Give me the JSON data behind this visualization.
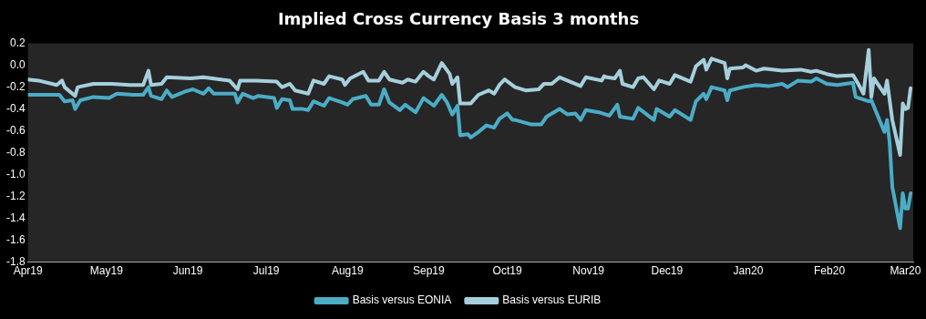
{
  "chart_data": {
    "type": "line",
    "title": "Implied Cross Currency Basis 3 months",
    "xlim": [
      "2019-04-01",
      "2020-03-04"
    ],
    "xticks": [
      {
        "value": "2019-04-01",
        "label": "Apr19"
      },
      {
        "value": "2019-05-01",
        "label": "May19"
      },
      {
        "value": "2019-06-01",
        "label": "Jun19"
      },
      {
        "value": "2019-07-01",
        "label": "Jul19"
      },
      {
        "value": "2019-08-01",
        "label": "Aug19"
      },
      {
        "value": "2019-09-01",
        "label": "Sep19"
      },
      {
        "value": "2019-10-01",
        "label": "Oct19"
      },
      {
        "value": "2019-11-01",
        "label": "Nov19"
      },
      {
        "value": "2019-12-01",
        "label": "Dec19"
      },
      {
        "value": "2020-01-01",
        "label": "Jan20"
      },
      {
        "value": "2020-02-01",
        "label": "Feb20"
      },
      {
        "value": "2020-03-01",
        "label": "Mar20"
      }
    ],
    "ylim": [
      -1.8,
      0.2
    ],
    "yticks": [
      {
        "value": -1.8,
        "label": "-1.8"
      },
      {
        "value": -1.6,
        "label": "-1.6"
      },
      {
        "value": -1.4,
        "label": "-1.4"
      },
      {
        "value": -1.2,
        "label": "-1.2"
      },
      {
        "value": -1.0,
        "label": "-1.0"
      },
      {
        "value": -0.8,
        "label": "-0.8"
      },
      {
        "value": -0.6,
        "label": "-0.6"
      },
      {
        "value": -0.4,
        "label": "-0.4"
      },
      {
        "value": -0.2,
        "label": "-0.2"
      },
      {
        "value": 0,
        "label": "0.0"
      },
      {
        "value": 0.2,
        "label": "0.2"
      }
    ],
    "grid": false,
    "legend": "bottom",
    "marker": "none",
    "line_style": "solid",
    "series": [
      {
        "name": "Basis versus EONIA",
        "color": "#4bacc6",
        "x": [
          "2019-04-01",
          "2019-04-13",
          "2019-04-15",
          "2019-04-18",
          "2019-04-19",
          "2019-04-21",
          "2019-04-26",
          "2019-05-02",
          "2019-05-05",
          "2019-05-11",
          "2019-05-15",
          "2019-05-17",
          "2019-05-18",
          "2019-05-22",
          "2019-05-24",
          "2019-05-26",
          "2019-05-31",
          "2019-06-03",
          "2019-06-07",
          "2019-06-09",
          "2019-06-11",
          "2019-06-19",
          "2019-06-20",
          "2019-06-22",
          "2019-06-26",
          "2019-06-28",
          "2019-07-04",
          "2019-07-05",
          "2019-07-07",
          "2019-07-10",
          "2019-07-11",
          "2019-07-15",
          "2019-07-17",
          "2019-07-19",
          "2019-07-23",
          "2019-07-25",
          "2019-07-30",
          "2019-08-01",
          "2019-08-03",
          "2019-08-08",
          "2019-08-10",
          "2019-08-13",
          "2019-08-15",
          "2019-08-17",
          "2019-08-21",
          "2019-08-23",
          "2019-08-27",
          "2019-08-30",
          "2019-09-03",
          "2019-09-06",
          "2019-09-08",
          "2019-09-10",
          "2019-09-12",
          "2019-09-13",
          "2019-09-16",
          "2019-09-17",
          "2019-09-20",
          "2019-09-23",
          "2019-09-26",
          "2019-09-28",
          "2019-10-01",
          "2019-10-03",
          "2019-10-04",
          "2019-10-10",
          "2019-10-14",
          "2019-10-16",
          "2019-10-21",
          "2019-10-24",
          "2019-10-27",
          "2019-10-29",
          "2019-10-31",
          "2019-11-05",
          "2019-11-09",
          "2019-11-12",
          "2019-11-13",
          "2019-11-18",
          "2019-11-20",
          "2019-11-26",
          "2019-11-27",
          "2019-12-02",
          "2019-12-04",
          "2019-12-10",
          "2019-12-12",
          "2019-12-15",
          "2019-12-16",
          "2019-12-18",
          "2019-12-23",
          "2019-12-24",
          "2019-12-25",
          "2019-12-30",
          "2020-01-04",
          "2020-01-09",
          "2020-01-14",
          "2020-01-16",
          "2020-01-20",
          "2020-01-25",
          "2020-01-27",
          "2020-01-31",
          "2020-02-04",
          "2020-02-10",
          "2020-02-11",
          "2020-02-16",
          "2020-02-17",
          "2020-02-22",
          "2020-02-23",
          "2020-02-24",
          "2020-02-25",
          "2020-02-28",
          "2020-02-29",
          "2020-03-01",
          "2020-03-02",
          "2020-03-03"
        ],
        "values": [
          -0.27,
          -0.27,
          -0.33,
          -0.32,
          -0.4,
          -0.32,
          -0.29,
          -0.3,
          -0.26,
          -0.27,
          -0.27,
          -0.2,
          -0.28,
          -0.31,
          -0.23,
          -0.29,
          -0.24,
          -0.22,
          -0.26,
          -0.21,
          -0.26,
          -0.26,
          -0.34,
          -0.26,
          -0.3,
          -0.28,
          -0.3,
          -0.39,
          -0.31,
          -0.32,
          -0.4,
          -0.4,
          -0.41,
          -0.33,
          -0.37,
          -0.3,
          -0.34,
          -0.36,
          -0.31,
          -0.28,
          -0.36,
          -0.36,
          -0.22,
          -0.34,
          -0.41,
          -0.36,
          -0.43,
          -0.3,
          -0.37,
          -0.27,
          -0.34,
          -0.45,
          -0.37,
          -0.64,
          -0.63,
          -0.66,
          -0.61,
          -0.55,
          -0.57,
          -0.49,
          -0.44,
          -0.5,
          -0.5,
          -0.54,
          -0.54,
          -0.47,
          -0.4,
          -0.45,
          -0.44,
          -0.5,
          -0.41,
          -0.43,
          -0.46,
          -0.36,
          -0.47,
          -0.49,
          -0.39,
          -0.5,
          -0.4,
          -0.47,
          -0.41,
          -0.5,
          -0.33,
          -0.26,
          -0.31,
          -0.2,
          -0.23,
          -0.32,
          -0.23,
          -0.2,
          -0.18,
          -0.19,
          -0.17,
          -0.2,
          -0.14,
          -0.15,
          -0.12,
          -0.17,
          -0.18,
          -0.16,
          -0.29,
          -0.33,
          -0.32,
          -0.61,
          -0.5,
          -0.71,
          -1.11,
          -1.49,
          -1.17,
          -1.31,
          -1.31,
          -1.17
        ]
      },
      {
        "name": "Basis versus EURIB",
        "color": "#a5cfdc",
        "x": [
          "2019-04-01",
          "2019-04-05",
          "2019-04-12",
          "2019-04-14",
          "2019-04-15",
          "2019-04-19",
          "2019-04-20",
          "2019-04-26",
          "2019-05-03",
          "2019-05-10",
          "2019-05-15",
          "2019-05-17",
          "2019-05-18",
          "2019-05-22",
          "2019-05-24",
          "2019-06-02",
          "2019-06-07",
          "2019-06-17",
          "2019-06-20",
          "2019-06-21",
          "2019-06-27",
          "2019-07-05",
          "2019-07-07",
          "2019-07-10",
          "2019-07-12",
          "2019-07-17",
          "2019-07-19",
          "2019-07-23",
          "2019-07-25",
          "2019-07-30",
          "2019-07-31",
          "2019-08-02",
          "2019-08-07",
          "2019-08-09",
          "2019-08-13",
          "2019-08-15",
          "2019-08-17",
          "2019-08-22",
          "2019-08-24",
          "2019-08-27",
          "2019-08-30",
          "2019-09-01",
          "2019-09-03",
          "2019-09-06",
          "2019-09-09",
          "2019-09-10",
          "2019-09-12",
          "2019-09-13",
          "2019-09-17",
          "2019-09-20",
          "2019-09-24",
          "2019-09-26",
          "2019-09-28",
          "2019-09-30",
          "2019-10-04",
          "2019-10-08",
          "2019-10-13",
          "2019-10-15",
          "2019-10-18",
          "2019-10-21",
          "2019-10-25",
          "2019-10-29",
          "2019-10-31",
          "2019-11-06",
          "2019-11-07",
          "2019-11-08",
          "2019-11-11",
          "2019-11-13",
          "2019-11-14",
          "2019-11-18",
          "2019-11-20",
          "2019-11-22",
          "2019-11-26",
          "2019-11-28",
          "2019-12-02",
          "2019-12-04",
          "2019-12-10",
          "2019-12-12",
          "2019-12-15",
          "2019-12-16",
          "2019-12-18",
          "2019-12-23",
          "2019-12-24",
          "2019-12-25",
          "2019-12-30",
          "2019-12-31",
          "2020-01-04",
          "2020-01-07",
          "2020-01-14",
          "2020-01-21",
          "2020-01-25",
          "2020-01-27",
          "2020-01-31",
          "2020-02-04",
          "2020-02-10",
          "2020-02-12",
          "2020-02-14",
          "2020-02-16",
          "2020-02-17",
          "2020-02-18",
          "2020-02-22",
          "2020-02-23",
          "2020-02-25",
          "2020-02-28",
          "2020-02-29",
          "2020-03-01",
          "2020-03-02",
          "2020-03-03"
        ],
        "values": [
          -0.13,
          -0.14,
          -0.18,
          -0.14,
          -0.2,
          -0.28,
          -0.2,
          -0.17,
          -0.17,
          -0.18,
          -0.18,
          -0.05,
          -0.18,
          -0.17,
          -0.11,
          -0.12,
          -0.11,
          -0.14,
          -0.22,
          -0.14,
          -0.14,
          -0.15,
          -0.2,
          -0.17,
          -0.23,
          -0.26,
          -0.14,
          -0.17,
          -0.1,
          -0.13,
          -0.18,
          -0.12,
          -0.06,
          -0.14,
          -0.14,
          -0.06,
          -0.13,
          -0.16,
          -0.13,
          -0.15,
          -0.06,
          -0.1,
          -0.13,
          0.02,
          -0.08,
          -0.17,
          -0.11,
          -0.35,
          -0.35,
          -0.27,
          -0.23,
          -0.26,
          -0.18,
          -0.13,
          -0.2,
          -0.23,
          -0.22,
          -0.17,
          -0.17,
          -0.11,
          -0.15,
          -0.19,
          -0.11,
          -0.14,
          -0.1,
          -0.11,
          -0.12,
          -0.05,
          -0.17,
          -0.2,
          -0.12,
          -0.11,
          -0.22,
          -0.14,
          -0.17,
          -0.09,
          -0.15,
          -0.01,
          0.05,
          -0.04,
          0.06,
          0.02,
          -0.12,
          -0.03,
          -0.02,
          0.0,
          -0.05,
          -0.03,
          -0.05,
          -0.04,
          -0.06,
          -0.05,
          -0.08,
          -0.1,
          -0.09,
          -0.17,
          -0.26,
          0.14,
          -0.29,
          -0.12,
          -0.26,
          -0.14,
          -0.5,
          -0.82,
          -0.35,
          -0.4,
          -0.39,
          -0.21
        ]
      }
    ]
  }
}
